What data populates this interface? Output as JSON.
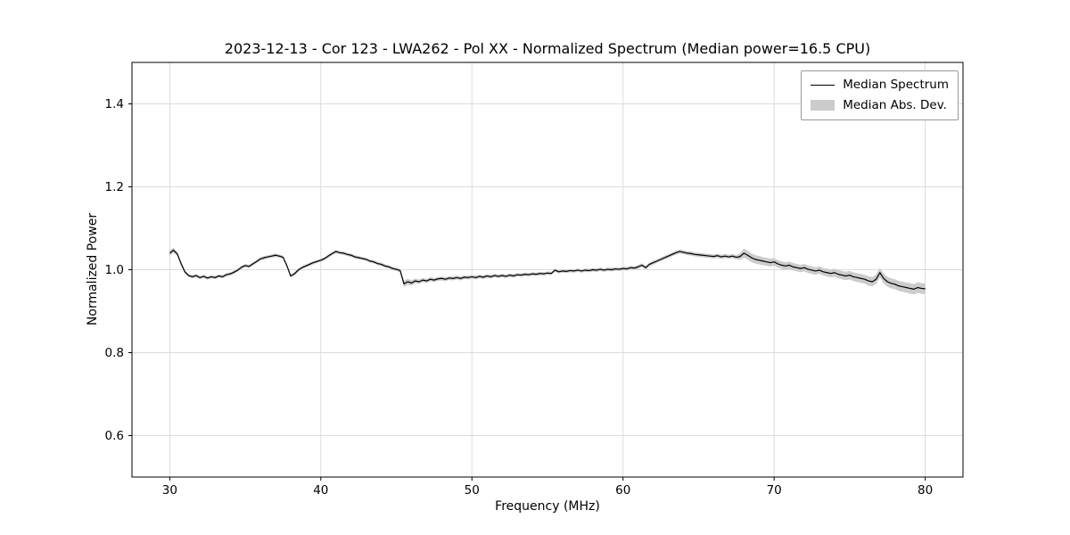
{
  "chart_data": {
    "type": "line",
    "title": "2023-12-13 - Cor 123 - LWA262 - Pol XX - Normalized Spectrum (Median power=16.5 CPU)",
    "xlabel": "Frequency (MHz)",
    "ylabel": "Normalized Power",
    "xlim": [
      27.5,
      82.5
    ],
    "ylim": [
      0.5,
      1.5
    ],
    "xticks": [
      30,
      40,
      50,
      60,
      70,
      80
    ],
    "yticks": [
      0.6,
      0.8,
      1.0,
      1.2,
      1.4
    ],
    "grid": true,
    "colors": {
      "line": "#000000",
      "band": "#cccccc",
      "grid": "#dcdcdc",
      "spine": "#000000",
      "background": "#ffffff"
    },
    "legend": {
      "position": "upper right",
      "entries": [
        {
          "label": "Median Spectrum",
          "type": "line",
          "color": "#000000"
        },
        {
          "label": "Median Abs. Dev.",
          "type": "band",
          "color": "#cccccc"
        }
      ]
    },
    "series": [
      {
        "name": "Median Spectrum",
        "x_start": 30.0,
        "x_step": 0.25,
        "values": [
          1.04,
          1.047,
          1.038,
          1.015,
          0.995,
          0.986,
          0.983,
          0.986,
          0.981,
          0.984,
          0.98,
          0.983,
          0.981,
          0.985,
          0.983,
          0.988,
          0.99,
          0.994,
          0.999,
          1.006,
          1.01,
          1.008,
          1.014,
          1.02,
          1.026,
          1.029,
          1.031,
          1.033,
          1.035,
          1.033,
          1.03,
          1.01,
          0.985,
          0.99,
          0.999,
          1.005,
          1.009,
          1.013,
          1.017,
          1.02,
          1.023,
          1.027,
          1.033,
          1.039,
          1.044,
          1.041,
          1.04,
          1.037,
          1.035,
          1.031,
          1.029,
          1.027,
          1.025,
          1.021,
          1.019,
          1.015,
          1.013,
          1.009,
          1.007,
          1.003,
          1.001,
          0.998,
          0.966,
          0.971,
          0.968,
          0.973,
          0.971,
          0.975,
          0.973,
          0.977,
          0.975,
          0.978,
          0.979,
          0.977,
          0.98,
          0.979,
          0.981,
          0.979,
          0.982,
          0.981,
          0.983,
          0.981,
          0.984,
          0.982,
          0.985,
          0.983,
          0.986,
          0.984,
          0.986,
          0.984,
          0.987,
          0.985,
          0.988,
          0.987,
          0.989,
          0.988,
          0.99,
          0.989,
          0.991,
          0.99,
          0.992,
          0.991,
          0.999,
          0.995,
          0.997,
          0.996,
          0.998,
          0.997,
          0.999,
          0.997,
          0.999,
          0.998,
          1.0,
          0.999,
          1.001,
          0.999,
          1.001,
          1.0,
          1.002,
          1.001,
          1.003,
          1.002,
          1.005,
          1.004,
          1.007,
          1.011,
          1.005,
          1.013,
          1.017,
          1.021,
          1.025,
          1.029,
          1.033,
          1.037,
          1.041,
          1.044,
          1.042,
          1.04,
          1.039,
          1.037,
          1.036,
          1.035,
          1.034,
          1.033,
          1.032,
          1.034,
          1.031,
          1.033,
          1.031,
          1.033,
          1.03,
          1.032,
          1.04,
          1.035,
          1.029,
          1.025,
          1.023,
          1.021,
          1.019,
          1.017,
          1.019,
          1.014,
          1.011,
          1.009,
          1.011,
          1.007,
          1.005,
          1.003,
          1.005,
          1.001,
          0.999,
          0.997,
          0.999,
          0.995,
          0.993,
          0.991,
          0.993,
          0.989,
          0.987,
          0.985,
          0.987,
          0.983,
          0.981,
          0.979,
          0.977,
          0.973,
          0.971,
          0.977,
          0.993,
          0.979,
          0.971,
          0.967,
          0.965,
          0.961,
          0.959,
          0.957,
          0.955,
          0.953,
          0.957,
          0.955,
          0.954
        ]
      },
      {
        "name": "Median Abs. Dev.",
        "style": "band_around_median",
        "halfwidth_points": [
          [
            30.0,
            0.007
          ],
          [
            30.5,
            0.005
          ],
          [
            31.0,
            0.004
          ],
          [
            45.25,
            0.004
          ],
          [
            45.5,
            0.008
          ],
          [
            46.5,
            0.005
          ],
          [
            55.0,
            0.004
          ],
          [
            67.5,
            0.005
          ],
          [
            68.0,
            0.011
          ],
          [
            70.0,
            0.009
          ],
          [
            73.0,
            0.009
          ],
          [
            76.0,
            0.011
          ],
          [
            80.0,
            0.013
          ]
        ]
      }
    ]
  }
}
